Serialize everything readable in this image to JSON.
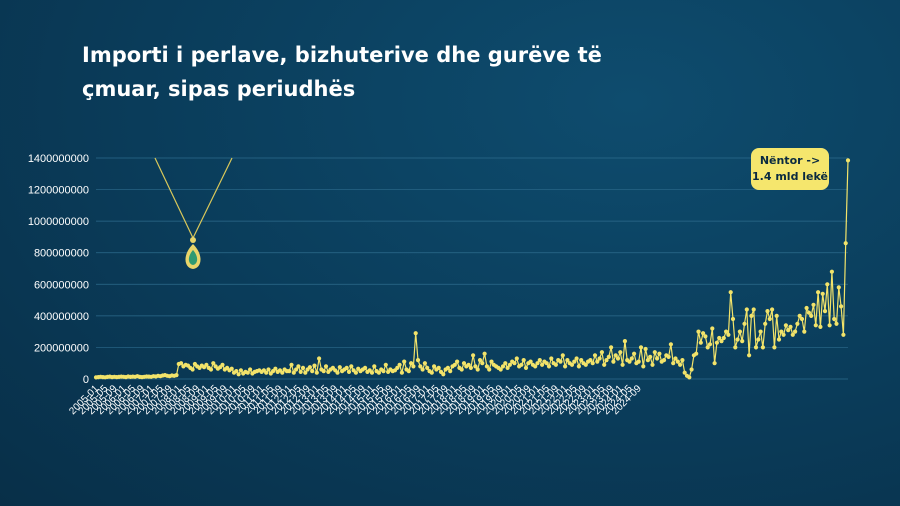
{
  "title": "Importi i perlave, bizhuterive dhe gurëve të çmuar, sipas periudhës",
  "annotation": "Nëntor -> 1.4 mld lekë",
  "colors": {
    "line": "#f2e36a",
    "grid": "#2d6b8c",
    "text": "#ffffff",
    "callout_bg": "#f5e66d"
  },
  "decoration": "pendant-necklace-icon",
  "chart_data": {
    "type": "line",
    "ylim": [
      0,
      1400000000
    ],
    "yticks": [
      0,
      200000000,
      400000000,
      600000000,
      800000000,
      1000000000,
      1200000000,
      1400000000
    ],
    "x_tick_labels": [
      "2005-01",
      "2005-05",
      "2005-09",
      "2006-01",
      "2006-05",
      "2006-09",
      "2007-01",
      "2007-05",
      "2007-09",
      "2008-01",
      "2008-05",
      "2008-09",
      "2009-01",
      "2009-05",
      "2009-09",
      "2010-01",
      "2010-05",
      "2010-09",
      "2011-01",
      "2011-05",
      "2011-09",
      "2012-01",
      "2012-05",
      "2012-09",
      "2013-01",
      "2013-05",
      "2013-09",
      "2014-01",
      "2014-05",
      "2014-09",
      "2015-01",
      "2015-05",
      "2015-09",
      "2016-01",
      "2016-05",
      "2016-09",
      "2017-01",
      "2017-05",
      "2017-09",
      "2018-01",
      "2018-05",
      "2018-09",
      "2019-01",
      "2019-05",
      "2019-09",
      "2020-01",
      "2020-05",
      "2020-09",
      "2021-01",
      "2021-05",
      "2021-09",
      "2022-01",
      "2022-05",
      "2022-09",
      "2023-01",
      "2023-05",
      "2023-09",
      "2024-01",
      "2024-05",
      "2024-09"
    ],
    "x_start": "2005-01",
    "values_millions": [
      10,
      12,
      14,
      12,
      11,
      13,
      15,
      12,
      14,
      12,
      13,
      15,
      14,
      12,
      16,
      13,
      15,
      14,
      18,
      13,
      12,
      14,
      16,
      15,
      14,
      18,
      16,
      20,
      18,
      22,
      25,
      20,
      18,
      22,
      20,
      25,
      95,
      100,
      80,
      90,
      85,
      70,
      60,
      95,
      80,
      70,
      85,
      75,
      90,
      70,
      60,
      100,
      80,
      65,
      75,
      90,
      60,
      70,
      55,
      65,
      40,
      50,
      30,
      55,
      35,
      45,
      40,
      60,
      35,
      45,
      50,
      55,
      45,
      55,
      40,
      60,
      35,
      50,
      65,
      45,
      55,
      40,
      60,
      50,
      50,
      90,
      40,
      60,
      80,
      45,
      70,
      40,
      60,
      75,
      50,
      85,
      40,
      130,
      60,
      50,
      80,
      45,
      60,
      70,
      55,
      40,
      75,
      50,
      60,
      70,
      45,
      80,
      55,
      40,
      65,
      50,
      60,
      70,
      45,
      55,
      40,
      80,
      50,
      40,
      60,
      50,
      90,
      45,
      60,
      50,
      55,
      70,
      90,
      40,
      110,
      60,
      50,
      100,
      80,
      290,
      120,
      80,
      60,
      100,
      70,
      50,
      40,
      80,
      60,
      70,
      45,
      30,
      60,
      70,
      50,
      80,
      90,
      110,
      70,
      60,
      100,
      80,
      90,
      70,
      150,
      80,
      60,
      120,
      100,
      160,
      80,
      60,
      110,
      90,
      80,
      70,
      60,
      80,
      100,
      70,
      90,
      110,
      100,
      130,
      80,
      90,
      120,
      70,
      100,
      110,
      90,
      80,
      100,
      120,
      90,
      110,
      100,
      80,
      130,
      100,
      90,
      120,
      110,
      150,
      80,
      120,
      100,
      90,
      110,
      130,
      80,
      120,
      100,
      90,
      110,
      120,
      100,
      150,
      110,
      130,
      170,
      90,
      120,
      140,
      200,
      110,
      150,
      130,
      170,
      90,
      240,
      120,
      110,
      130,
      160,
      100,
      110,
      200,
      80,
      190,
      120,
      140,
      90,
      170,
      130,
      160,
      110,
      120,
      150,
      140,
      220,
      100,
      130,
      110,
      90,
      120,
      40,
      20,
      10,
      60,
      150,
      160,
      300,
      230,
      290,
      270,
      200,
      220,
      320,
      100,
      230,
      260,
      240,
      260,
      300,
      280,
      550,
      380,
      200,
      250,
      300,
      240,
      350,
      440,
      150,
      400,
      440,
      200,
      250,
      300,
      200,
      350,
      430,
      380,
      440,
      200,
      400,
      250,
      300,
      280,
      340,
      310,
      330,
      280,
      300,
      350,
      400,
      380,
      300,
      450,
      420,
      400,
      470,
      340,
      550,
      330,
      540,
      430,
      600,
      340,
      680,
      380,
      350,
      580,
      460,
      280,
      860,
      1385
    ]
  }
}
